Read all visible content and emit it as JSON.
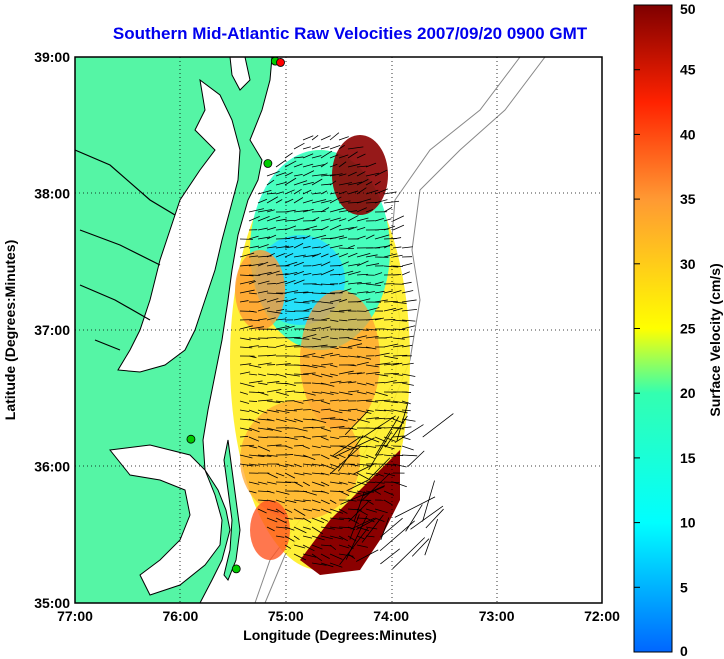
{
  "title": "Southern Mid-Atlantic Raw Velocities 2007/09/20 0900 GMT",
  "xlabel": "Longitude (Degrees:Minutes)",
  "ylabel": "Latitude (Degrees:Minutes)",
  "colorbar": {
    "label": "Surface Velocity (cm/s)",
    "min": 0,
    "max": 50,
    "ticks": [
      "0",
      "5",
      "10",
      "15",
      "20",
      "25",
      "30",
      "35",
      "40",
      "45",
      "50"
    ]
  },
  "map": {
    "lon_range": [
      -77.0,
      -72.0
    ],
    "lat_range": [
      35.0,
      39.0
    ],
    "lon_ticks": [
      "77:00",
      "76:00",
      "75:00",
      "74:00",
      "73:00",
      "72:00"
    ],
    "lat_ticks": [
      "35:00",
      "36:00",
      "37:00",
      "38:00",
      "39:00"
    ],
    "grid": "dotted",
    "land_color": "#55f5a5",
    "coastline_color": "#000000",
    "isobath_color": "#888888"
  },
  "stations": [
    {
      "name": "station-1",
      "lon": -75.1,
      "lat": 38.97,
      "color": "#00cc00"
    },
    {
      "name": "station-2",
      "lon": -75.05,
      "lat": 38.96,
      "color": "#ff0000"
    },
    {
      "name": "station-3",
      "lon": -75.9,
      "lat": 36.2,
      "color": "#00cc00"
    },
    {
      "name": "station-4",
      "lon": -75.17,
      "lat": 38.22,
      "color": "#00cc00"
    },
    {
      "name": "station-5",
      "lon": -75.47,
      "lat": 35.25,
      "color": "#00cc00"
    }
  ]
}
